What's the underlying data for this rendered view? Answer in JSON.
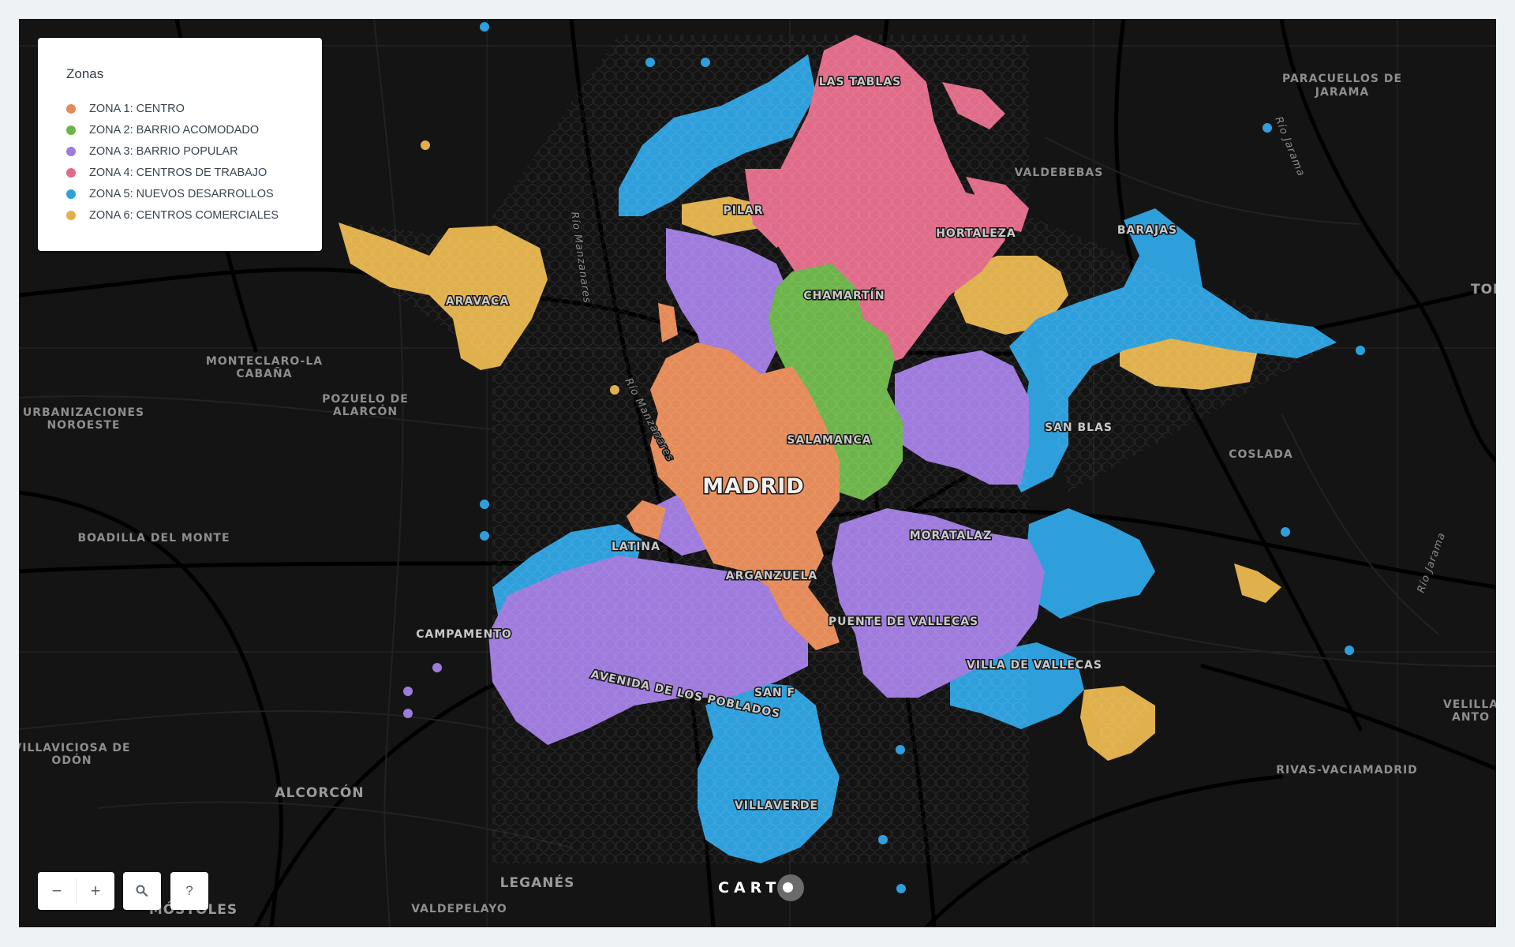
{
  "legend": {
    "title": "Zonas",
    "items": [
      {
        "label": "ZONA 1: CENTRO",
        "color": "#e58b5a"
      },
      {
        "label": "ZONA 2: BARRIO ACOMODADO",
        "color": "#6db54a"
      },
      {
        "label": "ZONA 3: BARRIO POPULAR",
        "color": "#9e7bdc"
      },
      {
        "label": "ZONA 4: CENTROS DE TRABAJO",
        "color": "#e06c8a"
      },
      {
        "label": "ZONA 5: NUEVOS DESARROLLOS",
        "color": "#2e9fdb"
      },
      {
        "label": "ZONA 6: CENTROS COMERCIALES",
        "color": "#e0b04d"
      }
    ]
  },
  "map_labels": {
    "madrid": "MADRID",
    "las_tablas": "LAS TABLAS",
    "pilar": "PILAR",
    "hortaleza": "HORTALEZA",
    "barajas": "BARAJAS",
    "chamartin": "CHAMARTÍN",
    "salamanca": "SALAMANCA",
    "san_blas": "SAN BLAS",
    "latina": "LATINA",
    "arganzuela": "ARGANZUELA",
    "moratalaz": "MORATALAZ",
    "puente_vallecas": "PUENTE DE VALLECAS",
    "villa_vallecas": "VILLA DE VALLECAS",
    "avenida_poblados": "AVENIDA DE LOS POBLADOS",
    "villaverde": "VILLAVERDE",
    "aravaca": "ARAVACA",
    "campamento": "CAMPAMENTO",
    "san_f": "SAN F",
    "paracuellos_1": "PARACUELLOS DE",
    "paracuellos_2": "JARAMA",
    "valdebebas": "VALDEBEBAS",
    "coslada": "COSLADA",
    "tor": "TOR",
    "monteclaro_1": "MONTECLARO-LA",
    "monteclaro_2": "CABAÑA",
    "pozuelo_1": "POZUELO DE",
    "pozuelo_2": "ALARCÓN",
    "urbanizaciones_1": "URBANIZACIONES",
    "urbanizaciones_2": "NOROESTE",
    "boadilla": "BOADILLA DEL MONTE",
    "villaviciosa_1": "VILLAVICIOSA DE",
    "villaviciosa_2": "ODÓN",
    "alcorcon": "ALCORCÓN",
    "leganes": "LEGANÉS",
    "mostoles": "MÓSTOLES",
    "valdepelayo": "VALDEPELAYO",
    "rivas": "RIVAS-VACIAMADRID",
    "velilla_1": "VELILLA",
    "velilla_2": "ANTO",
    "rio_manzanares_1": "Río Manzanares",
    "rio_manzanares_2": "Río Manzanares",
    "rio_jarama_1": "Río Jarama",
    "rio_jarama_2": "Río Jarama"
  },
  "controls": {
    "zoom_out": "−",
    "zoom_in": "+",
    "search": "search-icon",
    "help": "?"
  },
  "attribution": {
    "brand": "CART"
  }
}
